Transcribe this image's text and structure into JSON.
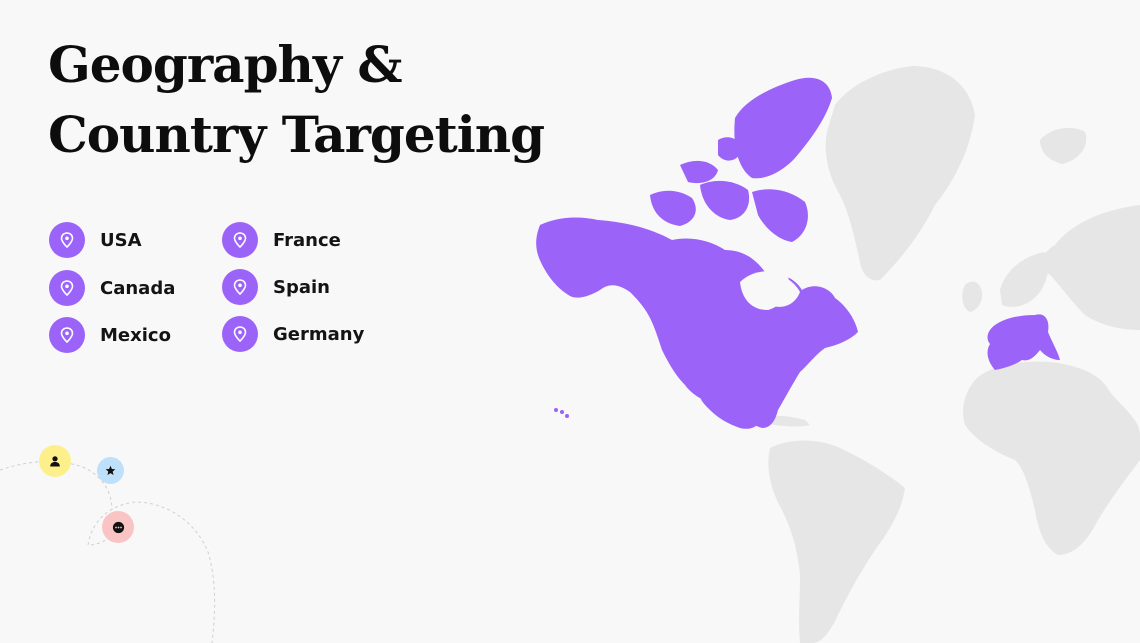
{
  "heading": {
    "line1": "Geography &",
    "line2": "Country Targeting"
  },
  "countries": {
    "usa": {
      "label": "USA",
      "icon": "map-pin-icon"
    },
    "canada": {
      "label": "Canada",
      "icon": "map-pin-icon"
    },
    "mexico": {
      "label": "Mexico",
      "icon": "map-pin-icon"
    },
    "france": {
      "label": "France",
      "icon": "map-pin-icon"
    },
    "spain": {
      "label": "Spain",
      "icon": "map-pin-icon"
    },
    "germany": {
      "label": "Germany",
      "icon": "map-pin-icon"
    }
  },
  "highlighted_regions": [
    "North America",
    "Western Europe"
  ],
  "colors": {
    "accent": "#9b63f8",
    "map_base": "#e6e6e6",
    "background": "#f8f8f8",
    "avatar_user": "#fdf08a",
    "avatar_star": "#bfe0fb",
    "avatar_chat": "#fbc4c4"
  },
  "decorations": {
    "icons": [
      "user-icon",
      "star-icon",
      "chat-icon"
    ]
  }
}
